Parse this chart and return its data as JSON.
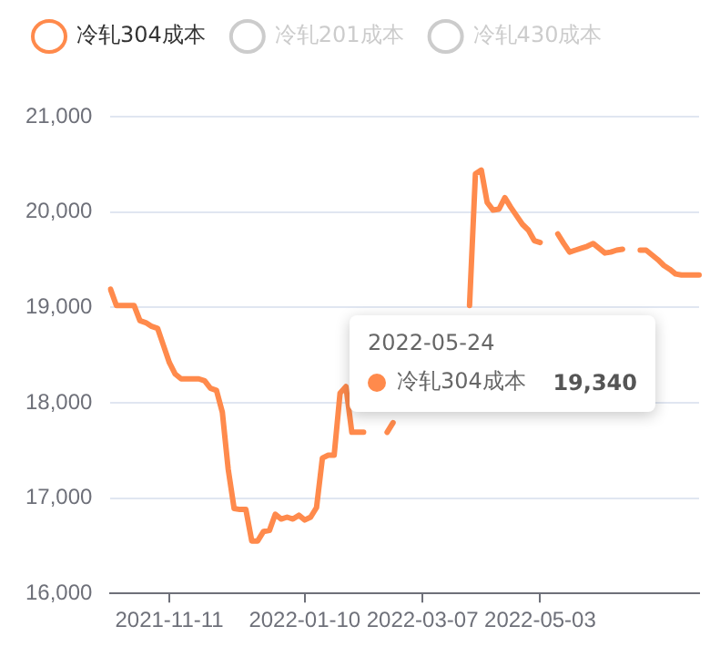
{
  "chart_data": {
    "type": "line",
    "categories": [
      null,
      null,
      null,
      null,
      null,
      null,
      null,
      null,
      null,
      null,
      "2021-11-11",
      null,
      null,
      null,
      null,
      null,
      null,
      null,
      null,
      null,
      null,
      null,
      null,
      null,
      null,
      null,
      null,
      null,
      null,
      null,
      null,
      null,
      null,
      "2022-01-10",
      null,
      null,
      null,
      null,
      null,
      null,
      null,
      null,
      null,
      null,
      null,
      null,
      null,
      null,
      null,
      null,
      null,
      null,
      null,
      "2022-03-07",
      null,
      null,
      null,
      null,
      null,
      null,
      null,
      null,
      null,
      null,
      null,
      null,
      null,
      null,
      null,
      null,
      null,
      null,
      null,
      "2022-05-03",
      null,
      null,
      null,
      null,
      null,
      null,
      null,
      null,
      null,
      null,
      null,
      null,
      null,
      null,
      null,
      null,
      null,
      null,
      null,
      null,
      null,
      null,
      null,
      null,
      null,
      null,
      null
    ],
    "series": [
      {
        "name": "冷轧304成本",
        "color": "#ff8a4c",
        "values": [
          19190,
          19020,
          19020,
          19020,
          19020,
          18860,
          18840,
          18800,
          18780,
          18600,
          18420,
          18300,
          18250,
          18250,
          18250,
          18250,
          18230,
          18150,
          18130,
          17900,
          17300,
          16890,
          16880,
          16880,
          16550,
          16550,
          16650,
          16660,
          16830,
          16780,
          16800,
          16780,
          16820,
          16770,
          16800,
          16900,
          17420,
          17450,
          17450,
          18100,
          18170,
          17690,
          17690,
          17690,
          null,
          null,
          null,
          17690,
          17790,
          null,
          null,
          null,
          null,
          null,
          null,
          null,
          null,
          null,
          null,
          null,
          null,
          19020,
          20400,
          20440,
          20100,
          20020,
          20030,
          20150,
          20050,
          19960,
          19870,
          19810,
          19700,
          19680,
          null,
          null,
          19770,
          19670,
          19580,
          19600,
          19620,
          19640,
          19670,
          19620,
          19570,
          19580,
          19600,
          19610,
          null,
          null,
          19600,
          19600,
          19550,
          19500,
          19440,
          19400,
          19350,
          19340,
          19340,
          19340,
          19340
        ]
      },
      {
        "name": "冷轧201成本",
        "color": "#cccccc",
        "values": [
          null,
          null,
          null,
          null,
          null,
          null,
          null,
          null,
          null,
          null,
          null,
          null,
          null,
          null,
          null,
          null,
          null,
          null,
          null,
          null,
          null,
          null,
          null,
          null,
          null,
          null,
          null,
          null,
          null,
          null,
          null,
          null,
          null,
          null,
          null,
          null,
          null,
          null,
          null,
          null,
          null,
          null,
          null,
          null,
          null,
          null,
          null,
          null,
          null,
          null,
          null,
          null,
          null,
          null,
          null,
          null,
          null,
          null,
          null,
          null,
          null,
          null,
          null,
          null,
          null,
          null,
          null,
          null,
          null,
          null,
          null,
          null,
          null,
          null,
          null,
          null,
          null,
          null,
          null,
          null,
          null,
          null,
          null,
          null,
          null,
          null,
          null,
          null,
          null,
          null,
          null,
          null,
          null,
          null,
          null,
          null,
          null,
          null,
          null,
          null,
          null
        ]
      },
      {
        "name": "冷轧430成本",
        "color": "#cccccc",
        "values": [
          null,
          null,
          null,
          null,
          null,
          null,
          null,
          null,
          null,
          null,
          null,
          null,
          null,
          null,
          null,
          null,
          null,
          null,
          null,
          null,
          null,
          null,
          null,
          null,
          null,
          null,
          null,
          null,
          null,
          null,
          null,
          null,
          null,
          null,
          null,
          null,
          null,
          null,
          null,
          null,
          null,
          null,
          null,
          null,
          null,
          null,
          null,
          null,
          null,
          null,
          null,
          null,
          null,
          null,
          null,
          null,
          null,
          null,
          null,
          null,
          null,
          null,
          null,
          null,
          null,
          null,
          null,
          null,
          null,
          null,
          null,
          null,
          null,
          null,
          null,
          null,
          null,
          null,
          null,
          null,
          null,
          null,
          null,
          null,
          null,
          null,
          null,
          null,
          null,
          null,
          null,
          null,
          null,
          null,
          null,
          null,
          null,
          null,
          null,
          null,
          null
        ]
      }
    ],
    "ylim": [
      16000,
      21000
    ],
    "yticks": [
      {
        "value": 16000,
        "label": "16,000"
      },
      {
        "value": 17000,
        "label": "17,000"
      },
      {
        "value": 18000,
        "label": "18,000"
      },
      {
        "value": 19000,
        "label": "19,000"
      },
      {
        "value": 20000,
        "label": "20,000"
      },
      {
        "value": 21000,
        "label": "21,000"
      }
    ],
    "grid": "y",
    "legend": "top left",
    "marker": "none",
    "line_style": "solid",
    "annotations": [
      "2022-05-24",
      "冷轧304成本",
      "19,340"
    ]
  }
}
